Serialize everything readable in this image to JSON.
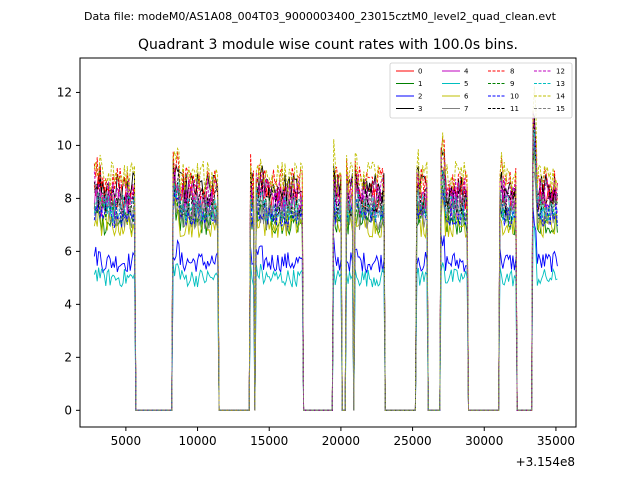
{
  "chart_data": {
    "type": "line",
    "suptitle": "Data file: modeM0/AS1A08_004T03_9000003400_23015cztM0_level2_quad_clean.evt",
    "title": "Quadrant 3 module wise count rates with 100.0s bins.",
    "xlabel": "",
    "ylabel": "",
    "x_offset_label": "+3.154e8",
    "xlim": [
      1800,
      36400
    ],
    "ylim": [
      -0.63,
      13.3
    ],
    "xticks": [
      5000,
      10000,
      15000,
      20000,
      25000,
      30000,
      35000
    ],
    "xtick_labels": [
      "5000",
      "10000",
      "15000",
      "20000",
      "25000",
      "30000",
      "35000"
    ],
    "yticks": [
      0,
      2,
      4,
      6,
      8,
      10,
      12
    ],
    "ytick_labels": [
      "0",
      "2",
      "4",
      "6",
      "8",
      "10",
      "12"
    ],
    "legend_position": "top-right",
    "bin_width_s": 100,
    "gti_segments": [
      {
        "start": 2800,
        "end": 5600
      },
      {
        "start": 8300,
        "end": 11400
      },
      {
        "start": 13700,
        "end": 13900
      },
      {
        "start": 14100,
        "end": 17300
      },
      {
        "start": 19500,
        "end": 20000
      },
      {
        "start": 20400,
        "end": 20800
      },
      {
        "start": 21000,
        "end": 23000
      },
      {
        "start": 25300,
        "end": 26000
      },
      {
        "start": 27000,
        "end": 28800
      },
      {
        "start": 31100,
        "end": 32200
      },
      {
        "start": 33400,
        "end": 35100
      }
    ],
    "series": [
      {
        "name": "0",
        "color": "#ff0000",
        "dashed": false,
        "base": 8.0
      },
      {
        "name": "1",
        "color": "#008000",
        "dashed": false,
        "base": 7.1
      },
      {
        "name": "2",
        "color": "#0000ff",
        "dashed": false,
        "base": 5.6
      },
      {
        "name": "3",
        "color": "#000000",
        "dashed": false,
        "base": 8.4
      },
      {
        "name": "4",
        "color": "#bf00bf",
        "dashed": false,
        "base": 7.8
      },
      {
        "name": "5",
        "color": "#00bfbf",
        "dashed": false,
        "base": 5.0
      },
      {
        "name": "6",
        "color": "#bfbf00",
        "dashed": false,
        "base": 7.0
      },
      {
        "name": "7",
        "color": "#808080",
        "dashed": false,
        "base": 7.3
      },
      {
        "name": "8",
        "color": "#ff0000",
        "dashed": true,
        "base": 8.6
      },
      {
        "name": "9",
        "color": "#008000",
        "dashed": true,
        "base": 7.5
      },
      {
        "name": "10",
        "color": "#0000ff",
        "dashed": true,
        "base": 7.4
      },
      {
        "name": "11",
        "color": "#000000",
        "dashed": true,
        "base": 7.9
      },
      {
        "name": "12",
        "color": "#bf00bf",
        "dashed": true,
        "base": 8.2
      },
      {
        "name": "13",
        "color": "#00bfbf",
        "dashed": true,
        "base": 7.6
      },
      {
        "name": "14",
        "color": "#bfbf00",
        "dashed": true,
        "base": 8.8
      },
      {
        "name": "15",
        "color": "#808080",
        "dashed": true,
        "base": 7.7
      }
    ]
  }
}
